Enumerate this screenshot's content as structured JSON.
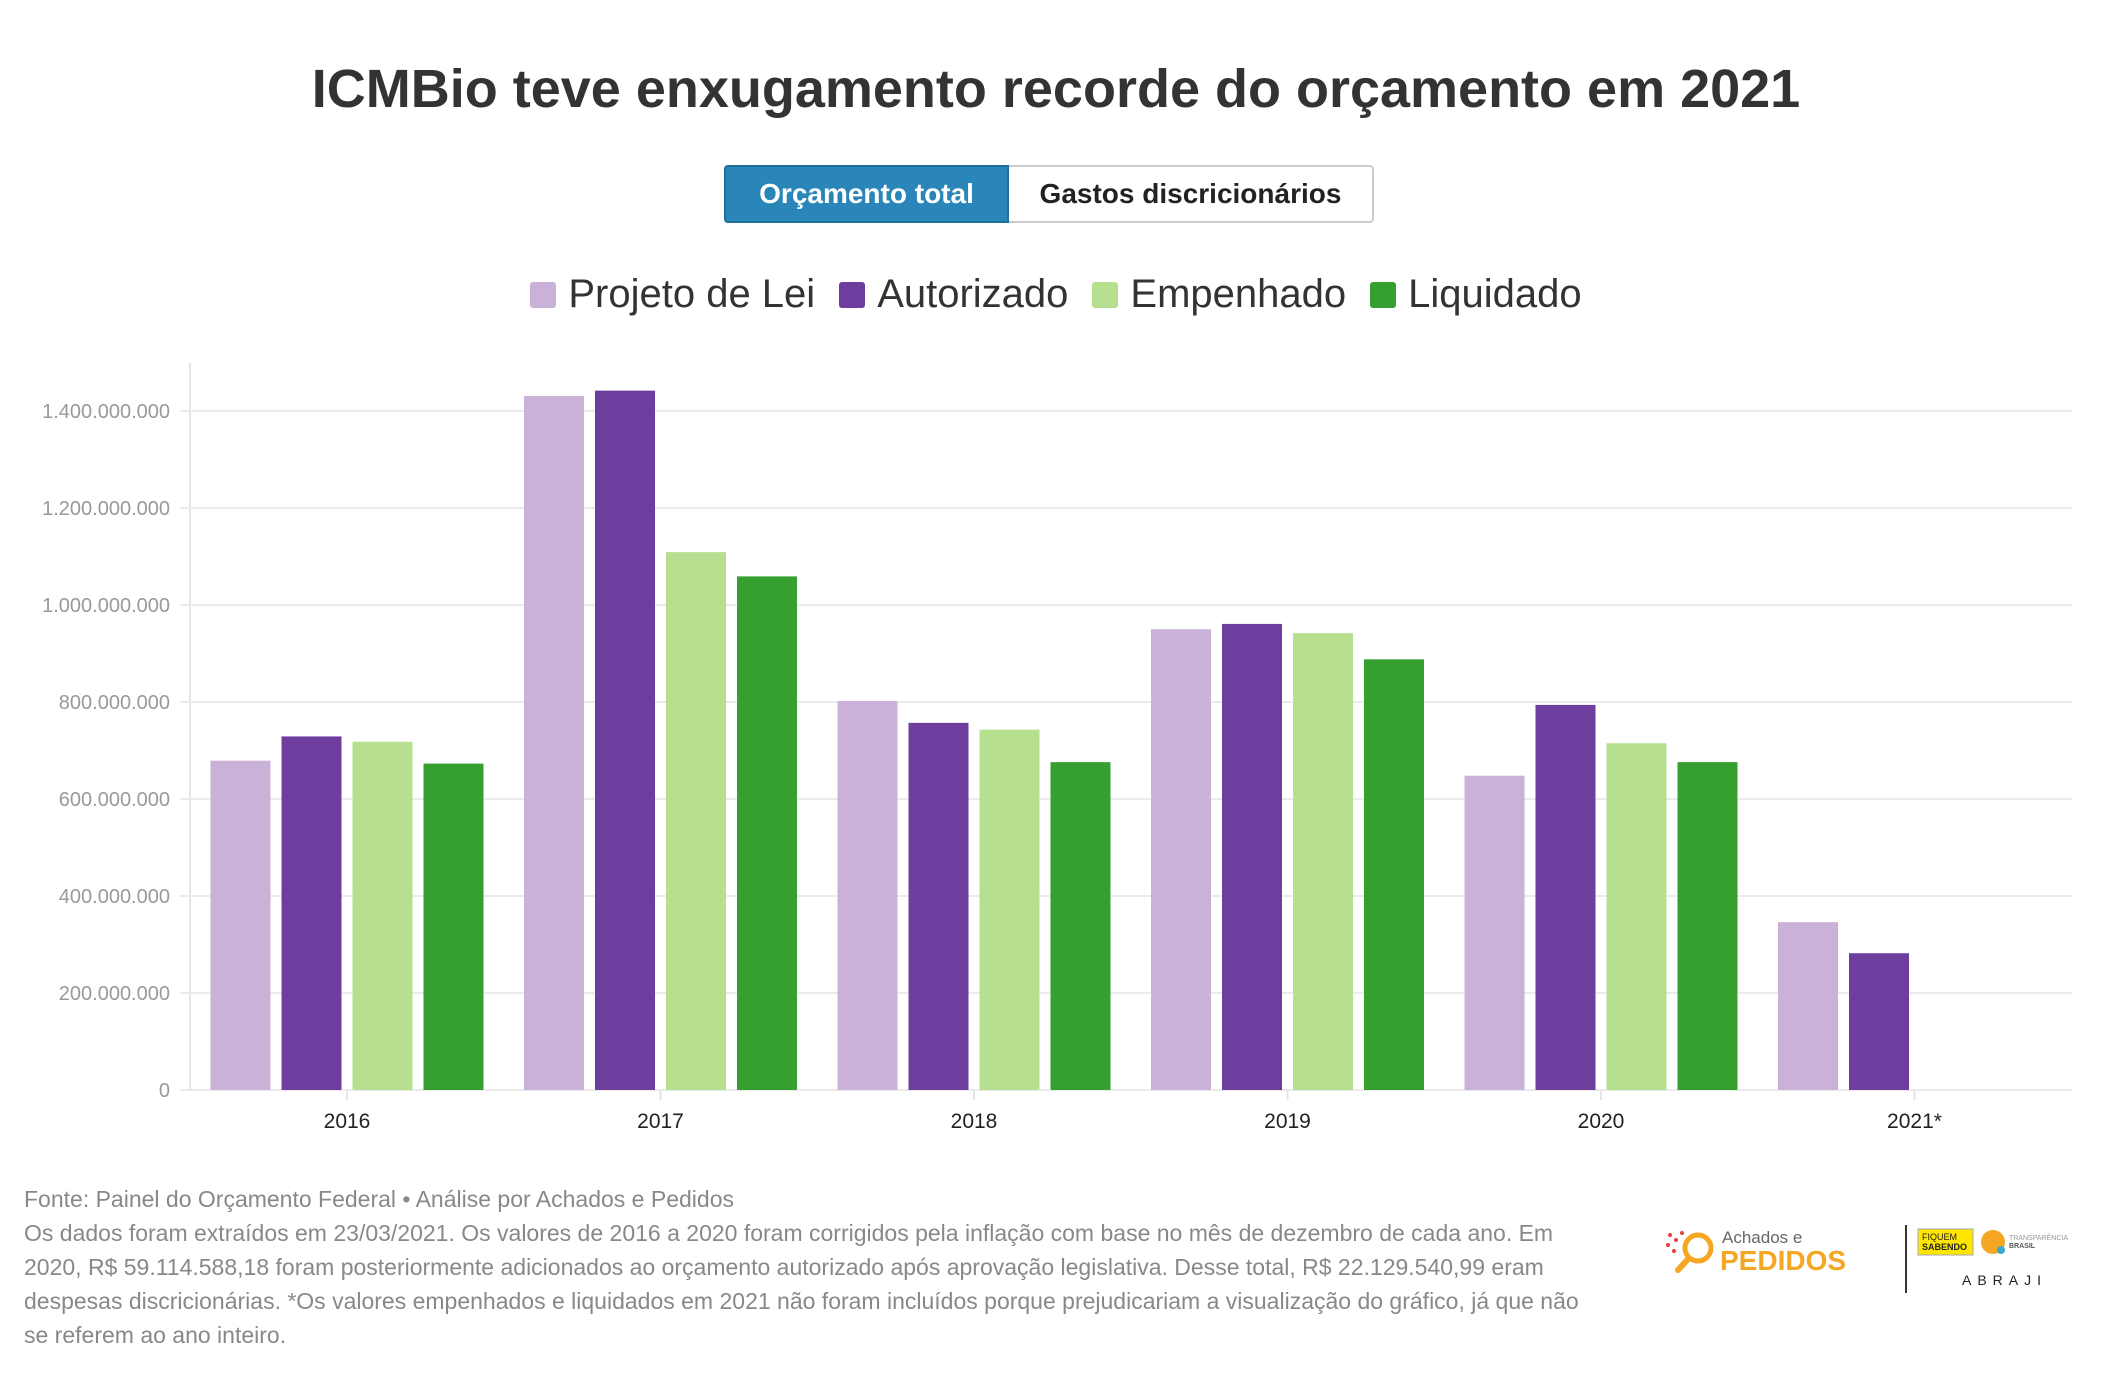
{
  "title": "ICMBio teve enxugamento recorde do orçamento em 2021",
  "tabs": [
    {
      "label": "Orçamento total",
      "active": true
    },
    {
      "label": "Gastos discricionários",
      "active": false
    }
  ],
  "chart_data": {
    "type": "bar",
    "title": "ICMBio teve enxugamento recorde do orçamento em 2021",
    "categories": [
      "2016",
      "2017",
      "2018",
      "2019",
      "2020",
      "2021*"
    ],
    "series": [
      {
        "name": "Projeto de Lei",
        "color": "#c9b1d8",
        "values": [
          679000000,
          1431000000,
          802000000,
          950000000,
          648000000,
          346000000
        ]
      },
      {
        "name": "Autorizado",
        "color": "#6e3e9e",
        "values": [
          729000000,
          1442000000,
          757000000,
          961000000,
          794000000,
          282000000
        ]
      },
      {
        "name": "Empenhado",
        "color": "#b6e08f",
        "values": [
          718000000,
          1109000000,
          743000000,
          942000000,
          715000000,
          null
        ]
      },
      {
        "name": "Liquidado",
        "color": "#35a02f",
        "values": [
          673000000,
          1059000000,
          676000000,
          888000000,
          676000000,
          null
        ]
      }
    ],
    "yticks": [
      "0",
      "200.000.000",
      "400.000.000",
      "600.000.000",
      "800.000.000",
      "1.000.000.000",
      "1.200.000.000",
      "1.400.000.000"
    ],
    "ytick_values": [
      0,
      200000000,
      400000000,
      600000000,
      800000000,
      1000000000,
      1200000000,
      1400000000
    ],
    "ylim": [
      0,
      1500000000
    ],
    "xlabel": "",
    "ylabel": "",
    "grid": true,
    "legend": "top-center"
  },
  "footer": {
    "source": "Fonte: Painel do Orçamento Federal • Análise por Achados e Pedidos",
    "note": "Os dados foram extraídos em 23/03/2021. Os valores de 2016 a 2020 foram corrigidos pela inflação com base no mês de dezembro de cada ano. Em 2020, R$ 59.114.588,18 foram posteriormente adicionados ao orçamento autorizado após aprovação legislativa. Desse total, R$ 22.129.540,99 eram despesas discricionárias. *Os valores empenhados e liquidados em 2021 não foram incluídos porque prejudicariam a visualização do gráfico, já que não se referem ao ano inteiro."
  },
  "logos": {
    "achados_top": "Achados e",
    "achados_bottom": "PEDIDOS",
    "fiquem": "FIQUEM SABENDO",
    "transparencia_top": "TRANSPARÊNCIA",
    "transparencia_bottom": "BRASIL",
    "abraji": "ABRAJI"
  }
}
